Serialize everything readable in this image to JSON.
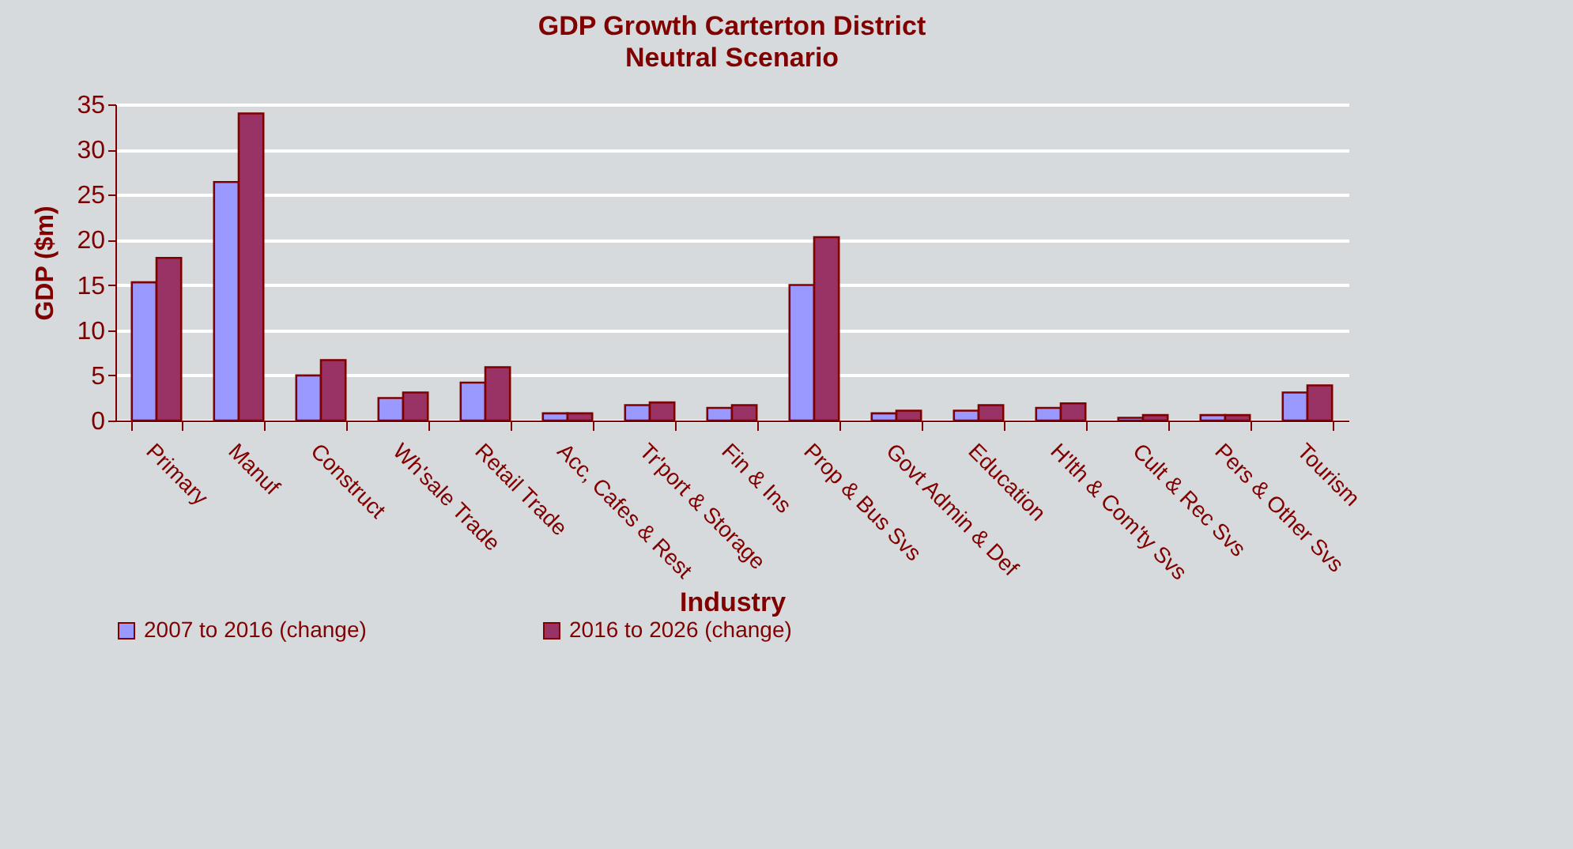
{
  "chart_data": {
    "type": "bar",
    "title": "GDP Growth Carterton District",
    "subtitle": "Neutral Scenario",
    "xlabel": "Industry",
    "ylabel": "GDP ($m)",
    "categories": [
      "Primary",
      "Manuf",
      "Construct",
      "Wh'sale Trade",
      "Retail Trade",
      "Acc, Cafes & Rest",
      "Tr'port & Storage",
      "Fin & Ins",
      "Prop & Bus Svs",
      "Govt Admin & Def",
      "Education",
      "H'lth & Com'ty Svs",
      "Cult & Rec Svs",
      "Pers & Other Svs",
      "Tourism"
    ],
    "series": [
      {
        "name": "2007 to 2016 (change)",
        "color": "#9999ff",
        "values": [
          15.3,
          26.4,
          5.0,
          2.5,
          4.2,
          0.8,
          1.7,
          1.4,
          15.0,
          0.8,
          1.1,
          1.4,
          0.3,
          0.6,
          3.1
        ]
      },
      {
        "name": "2016 to 2026 (change)",
        "color": "#993366",
        "values": [
          18.0,
          34.0,
          6.7,
          3.1,
          5.9,
          0.8,
          2.0,
          1.7,
          20.3,
          1.1,
          1.7,
          1.9,
          0.6,
          0.6,
          3.9
        ]
      }
    ],
    "ylim": [
      0,
      35
    ],
    "yticks": [
      0,
      5,
      10,
      15,
      20,
      25,
      30,
      35
    ],
    "grid": "y",
    "legend": "bottom"
  }
}
